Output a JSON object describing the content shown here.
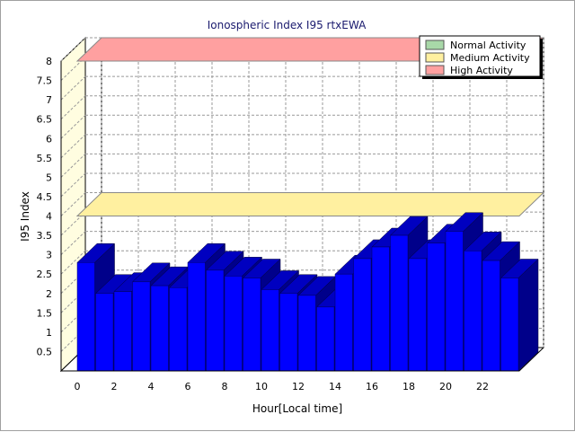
{
  "chart_data": {
    "type": "bar",
    "title": "Ionospheric Index I95 rtxEWA",
    "xlabel": "Hour[Local time]",
    "ylabel": "I95 Index",
    "ylim": [
      0,
      8
    ],
    "yticks": [
      "0.5",
      "1",
      "1.5",
      "2",
      "2.5",
      "3",
      "3.5",
      "4",
      "4.5",
      "5",
      "5.5",
      "6",
      "6.5",
      "7",
      "7.5",
      "8"
    ],
    "xticks": [
      "0",
      "2",
      "4",
      "6",
      "8",
      "10",
      "12",
      "14",
      "16",
      "18",
      "20",
      "22"
    ],
    "grid": true,
    "legend_position": "top-right",
    "legend": [
      {
        "name": "Normal Activity",
        "color": "#a8d8a8"
      },
      {
        "name": "Medium Activity",
        "color": "#fff0a0"
      },
      {
        "name": "High Activity",
        "color": "#ffa0a0"
      }
    ],
    "bands": [
      {
        "name": "Medium Activity",
        "value": 4.0,
        "color": "#fff0a0"
      },
      {
        "name": "High Activity",
        "value": 8.0,
        "color": "#ffa0a0"
      }
    ],
    "series": [
      {
        "color": "#0000ff",
        "values": [
          2.8,
          2.0,
          2.05,
          2.3,
          2.2,
          2.15,
          2.8,
          2.6,
          2.45,
          2.4,
          2.1,
          2.0,
          1.95,
          1.65,
          2.5,
          2.9,
          3.2,
          3.5,
          2.9,
          3.3,
          3.6,
          3.1,
          2.85,
          2.4
        ]
      }
    ],
    "background_colors": {
      "wall": "#fffde0",
      "bar": "#0000ff",
      "bar_side": "#00008a",
      "bar_top": "#0000c0"
    }
  }
}
